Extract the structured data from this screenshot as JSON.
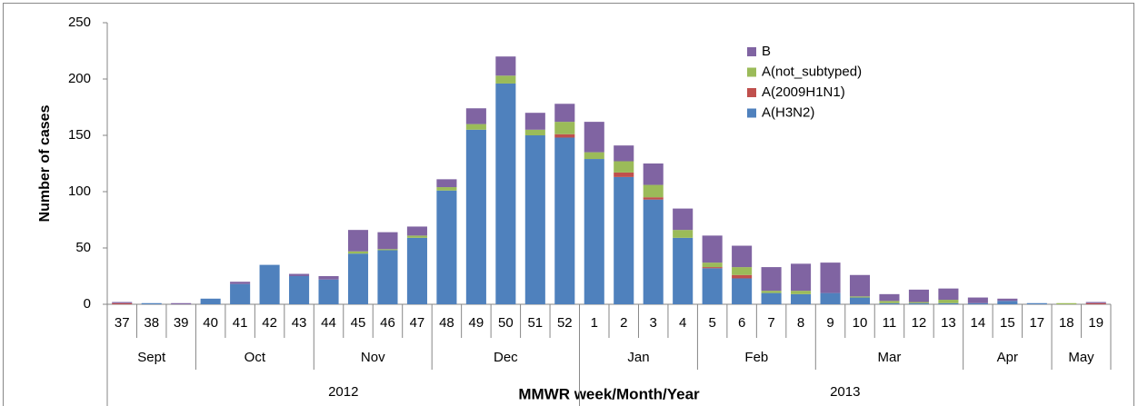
{
  "chart_data": {
    "type": "stacked_bar",
    "y_label": "Number of cases",
    "x_label": "MMWR week/Month/Year",
    "categories": [
      "37",
      "38",
      "39",
      "40",
      "41",
      "42",
      "43",
      "44",
      "45",
      "46",
      "47",
      "48",
      "49",
      "50",
      "51",
      "52",
      "1",
      "2",
      "3",
      "4",
      "5",
      "6",
      "7",
      "8",
      "9",
      "10",
      "11",
      "12",
      "13",
      "14",
      "15",
      "17",
      "18",
      "19"
    ],
    "month_groups": [
      {
        "label": "Sept",
        "span": 3
      },
      {
        "label": "Oct",
        "span": 4
      },
      {
        "label": "Nov",
        "span": 4
      },
      {
        "label": "Dec",
        "span": 5
      },
      {
        "label": "Jan",
        "span": 4
      },
      {
        "label": "Feb",
        "span": 4
      },
      {
        "label": "Mar",
        "span": 5
      },
      {
        "label": "Apr",
        "span": 3
      },
      {
        "label": "May",
        "span": 2
      }
    ],
    "year_groups": [
      {
        "label": "2012",
        "span": 16
      },
      {
        "label": "2013",
        "span": 18
      }
    ],
    "series": [
      {
        "name": "A(H3N2)",
        "color": "#4f81bd",
        "values": [
          0,
          1,
          0,
          5,
          18,
          35,
          25,
          22,
          45,
          48,
          59,
          101,
          155,
          196,
          150,
          148,
          129,
          113,
          93,
          59,
          32,
          23,
          10,
          9,
          10,
          6,
          1,
          1,
          1,
          1,
          3,
          1,
          0,
          0
        ]
      },
      {
        "name": "A(2009H1N1)",
        "color": "#c0504d",
        "values": [
          1,
          0,
          0,
          0,
          0,
          0,
          0,
          0,
          0,
          0,
          0,
          0,
          0,
          0,
          0,
          3,
          0,
          4,
          2,
          0,
          1,
          3,
          0,
          0,
          0,
          0,
          0,
          0,
          0,
          0,
          0,
          0,
          0,
          1
        ]
      },
      {
        "name": "A(not_subtyped)",
        "color": "#9bbb59",
        "values": [
          0,
          0,
          0,
          0,
          0,
          0,
          0,
          0,
          2,
          1,
          2,
          3,
          5,
          7,
          5,
          11,
          6,
          10,
          11,
          7,
          4,
          7,
          2,
          3,
          0,
          1,
          2,
          1,
          3,
          0,
          0,
          0,
          1,
          0
        ]
      },
      {
        "name": "B",
        "color": "#8064a2",
        "values": [
          1,
          0,
          1,
          0,
          2,
          0,
          2,
          3,
          19,
          15,
          8,
          7,
          14,
          17,
          15,
          16,
          27,
          14,
          19,
          19,
          24,
          19,
          21,
          24,
          27,
          19,
          6,
          11,
          10,
          5,
          2,
          0,
          0,
          1
        ]
      }
    ],
    "ylim": [
      0,
      250
    ],
    "yticks": [
      0,
      50,
      100,
      150,
      200,
      250
    ],
    "grid": false
  }
}
